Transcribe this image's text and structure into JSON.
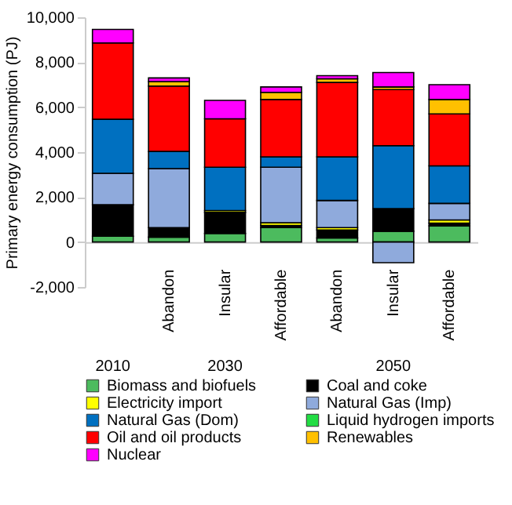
{
  "chart_data": {
    "type": "bar",
    "stacked": true,
    "ylabel": "Primary energy consumption (PJ)",
    "categories": [
      null,
      "Abandon",
      "Insular",
      "Affordable",
      "Abandon",
      "Insular",
      "Affordable"
    ],
    "annotations": [
      "2010",
      "2030",
      "2050"
    ],
    "ylim": [
      -2000,
      10000
    ],
    "yticks": [
      {
        "value": -2000,
        "label": "-2,000"
      },
      0,
      {
        "value": 2000,
        "label": "2,000"
      },
      {
        "value": 4000,
        "label": "4,000"
      },
      {
        "value": 6000,
        "label": "6,000"
      },
      {
        "value": 8000,
        "label": "8,000"
      },
      {
        "value": 10000,
        "label": "10,000"
      }
    ],
    "grid": false,
    "legend": "bottom",
    "series": [
      {
        "name": "Biomass and biofuels",
        "color": "#4cbb5e",
        "values": [
          260,
          220,
          380,
          640,
          180,
          480,
          720
        ]
      },
      {
        "name": "Coal and coke",
        "color": "#000000",
        "values": [
          1400,
          420,
          940,
          100,
          360,
          1010,
          120
        ]
      },
      {
        "name": "Electricity import",
        "color": "#ffff00",
        "values": [
          null,
          null,
          80,
          120,
          100,
          null,
          140
        ]
      },
      {
        "name": "Natural Gas (Imp)",
        "color": "#8faadc",
        "values": [
          1400,
          2630,
          null,
          2470,
          1210,
          -920,
          740
        ]
      },
      {
        "name": "Natural Gas (Dom)",
        "color": "#0070c0",
        "values": [
          2400,
          760,
          1930,
          460,
          1940,
          2800,
          1670
        ]
      },
      {
        "name": "Liquid hydrogen imports",
        "color": "#22dd44",
        "values": [
          null,
          null,
          null,
          null,
          null,
          null,
          null
        ]
      },
      {
        "name": "Oil and oil products",
        "color": "#ff0000",
        "values": [
          3400,
          2910,
          2150,
          2550,
          3310,
          2490,
          2310
        ]
      },
      {
        "name": "Renewables",
        "color": "#ffc000",
        "values": [
          null,
          200,
          null,
          320,
          160,
          120,
          640
        ]
      },
      {
        "name": "Nuclear",
        "color": "#ff00ff",
        "values": [
          600,
          160,
          820,
          240,
          140,
          640,
          660
        ]
      }
    ]
  }
}
